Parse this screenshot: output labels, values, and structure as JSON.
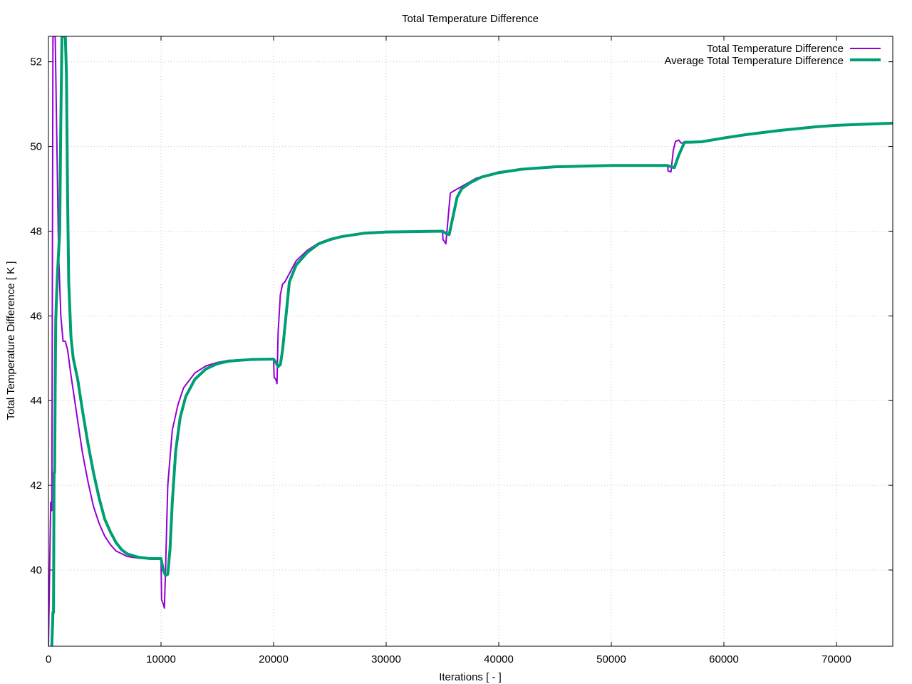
{
  "chart_data": {
    "type": "line",
    "title": "Total Temperature Difference",
    "xlabel": "Iterations [ - ]",
    "ylabel": "Total Temperature Difference [ K ]",
    "xlim": [
      0,
      75000
    ],
    "ylim": [
      38.2,
      52.6
    ],
    "x_ticks": [
      0,
      10000,
      20000,
      30000,
      40000,
      50000,
      60000,
      70000
    ],
    "y_ticks": [
      40,
      42,
      44,
      46,
      48,
      50,
      52
    ],
    "grid": true,
    "legend_position": "top-right",
    "series": [
      {
        "name": "Total Temperature Difference",
        "color": "#9400d3",
        "points": [
          [
            0,
            38.2
          ],
          [
            200,
            41.6
          ],
          [
            300,
            41.4
          ],
          [
            400,
            52.6
          ],
          [
            600,
            52.6
          ],
          [
            900,
            47.5
          ],
          [
            1100,
            46.0
          ],
          [
            1300,
            45.4
          ],
          [
            1500,
            45.4
          ],
          [
            1700,
            45.2
          ],
          [
            2000,
            44.6
          ],
          [
            2500,
            43.7
          ],
          [
            3000,
            42.8
          ],
          [
            3500,
            42.1
          ],
          [
            4000,
            41.5
          ],
          [
            4500,
            41.1
          ],
          [
            5000,
            40.8
          ],
          [
            5500,
            40.6
          ],
          [
            6000,
            40.45
          ],
          [
            7000,
            40.32
          ],
          [
            8000,
            40.28
          ],
          [
            9000,
            40.26
          ],
          [
            10000,
            40.26
          ],
          [
            10050,
            39.3
          ],
          [
            10200,
            39.2
          ],
          [
            10300,
            39.1
          ],
          [
            10400,
            40.0
          ],
          [
            10600,
            42.0
          ],
          [
            11000,
            43.3
          ],
          [
            11500,
            43.9
          ],
          [
            12000,
            44.3
          ],
          [
            13000,
            44.65
          ],
          [
            14000,
            44.82
          ],
          [
            15000,
            44.9
          ],
          [
            16000,
            44.95
          ],
          [
            18000,
            44.97
          ],
          [
            20000,
            44.98
          ],
          [
            20050,
            44.55
          ],
          [
            20200,
            44.5
          ],
          [
            20300,
            44.4
          ],
          [
            20400,
            45.6
          ],
          [
            20600,
            46.5
          ],
          [
            20800,
            46.75
          ],
          [
            21000,
            46.8
          ],
          [
            22000,
            47.3
          ],
          [
            23000,
            47.55
          ],
          [
            24000,
            47.72
          ],
          [
            25000,
            47.82
          ],
          [
            26000,
            47.88
          ],
          [
            28000,
            47.95
          ],
          [
            30000,
            47.98
          ],
          [
            33000,
            48.0
          ],
          [
            35000,
            48.0
          ],
          [
            35050,
            47.8
          ],
          [
            35200,
            47.75
          ],
          [
            35300,
            47.7
          ],
          [
            35500,
            48.3
          ],
          [
            35700,
            48.9
          ],
          [
            36000,
            48.95
          ],
          [
            37000,
            49.1
          ],
          [
            38000,
            49.25
          ],
          [
            40000,
            49.4
          ],
          [
            42000,
            49.47
          ],
          [
            45000,
            49.52
          ],
          [
            50000,
            49.55
          ],
          [
            55000,
            49.55
          ],
          [
            55050,
            49.42
          ],
          [
            55300,
            49.4
          ],
          [
            55500,
            49.9
          ],
          [
            55700,
            50.12
          ],
          [
            56000,
            50.15
          ],
          [
            56200,
            50.08
          ],
          [
            57000,
            50.1
          ],
          [
            58000,
            50.12
          ],
          [
            60000,
            50.2
          ],
          [
            62000,
            50.28
          ],
          [
            65000,
            50.38
          ],
          [
            68000,
            50.46
          ],
          [
            70000,
            50.5
          ],
          [
            72000,
            50.52
          ],
          [
            75000,
            50.55
          ]
        ]
      },
      {
        "name": "Average Total Temperature Difference",
        "color": "#009e73",
        "points": [
          [
            300,
            38.2
          ],
          [
            400,
            39.0
          ],
          [
            450,
            39.0
          ],
          [
            500,
            42.3
          ],
          [
            550,
            42.3
          ],
          [
            600,
            44.3
          ],
          [
            650,
            45.9
          ],
          [
            700,
            46.3
          ],
          [
            800,
            47.0
          ],
          [
            1000,
            48.0
          ],
          [
            1100,
            50.6
          ],
          [
            1200,
            52.6
          ],
          [
            1500,
            52.6
          ],
          [
            1600,
            51.7
          ],
          [
            1700,
            48.8
          ],
          [
            1800,
            46.8
          ],
          [
            2000,
            45.5
          ],
          [
            2200,
            45.0
          ],
          [
            2600,
            44.5
          ],
          [
            3000,
            43.8
          ],
          [
            3500,
            43.0
          ],
          [
            4000,
            42.3
          ],
          [
            4500,
            41.7
          ],
          [
            5000,
            41.2
          ],
          [
            5500,
            40.9
          ],
          [
            6000,
            40.65
          ],
          [
            6500,
            40.48
          ],
          [
            7000,
            40.38
          ],
          [
            8000,
            40.3
          ],
          [
            9000,
            40.27
          ],
          [
            10000,
            40.27
          ],
          [
            10200,
            40.0
          ],
          [
            10400,
            39.87
          ],
          [
            10600,
            39.9
          ],
          [
            10800,
            40.5
          ],
          [
            11000,
            41.6
          ],
          [
            11300,
            42.8
          ],
          [
            11700,
            43.6
          ],
          [
            12200,
            44.1
          ],
          [
            13000,
            44.5
          ],
          [
            14000,
            44.75
          ],
          [
            15000,
            44.87
          ],
          [
            16000,
            44.93
          ],
          [
            18000,
            44.97
          ],
          [
            20000,
            44.98
          ],
          [
            20200,
            44.9
          ],
          [
            20400,
            44.8
          ],
          [
            20600,
            44.85
          ],
          [
            20800,
            45.2
          ],
          [
            21100,
            46.0
          ],
          [
            21400,
            46.8
          ],
          [
            22000,
            47.2
          ],
          [
            23000,
            47.5
          ],
          [
            24000,
            47.7
          ],
          [
            25000,
            47.8
          ],
          [
            26000,
            47.87
          ],
          [
            28000,
            47.95
          ],
          [
            30000,
            47.98
          ],
          [
            35000,
            48.0
          ],
          [
            35300,
            47.95
          ],
          [
            35600,
            47.92
          ],
          [
            35900,
            48.3
          ],
          [
            36300,
            48.8
          ],
          [
            36700,
            49.0
          ],
          [
            37500,
            49.15
          ],
          [
            38500,
            49.28
          ],
          [
            40000,
            49.38
          ],
          [
            42000,
            49.46
          ],
          [
            45000,
            49.52
          ],
          [
            50000,
            49.55
          ],
          [
            55000,
            49.55
          ],
          [
            55300,
            49.52
          ],
          [
            55600,
            49.5
          ],
          [
            56000,
            49.8
          ],
          [
            56500,
            50.1
          ],
          [
            57000,
            50.1
          ],
          [
            58000,
            50.11
          ],
          [
            60000,
            50.2
          ],
          [
            62000,
            50.28
          ],
          [
            65000,
            50.38
          ],
          [
            68000,
            50.46
          ],
          [
            70000,
            50.5
          ],
          [
            72000,
            50.52
          ],
          [
            75000,
            50.55
          ]
        ]
      }
    ]
  }
}
